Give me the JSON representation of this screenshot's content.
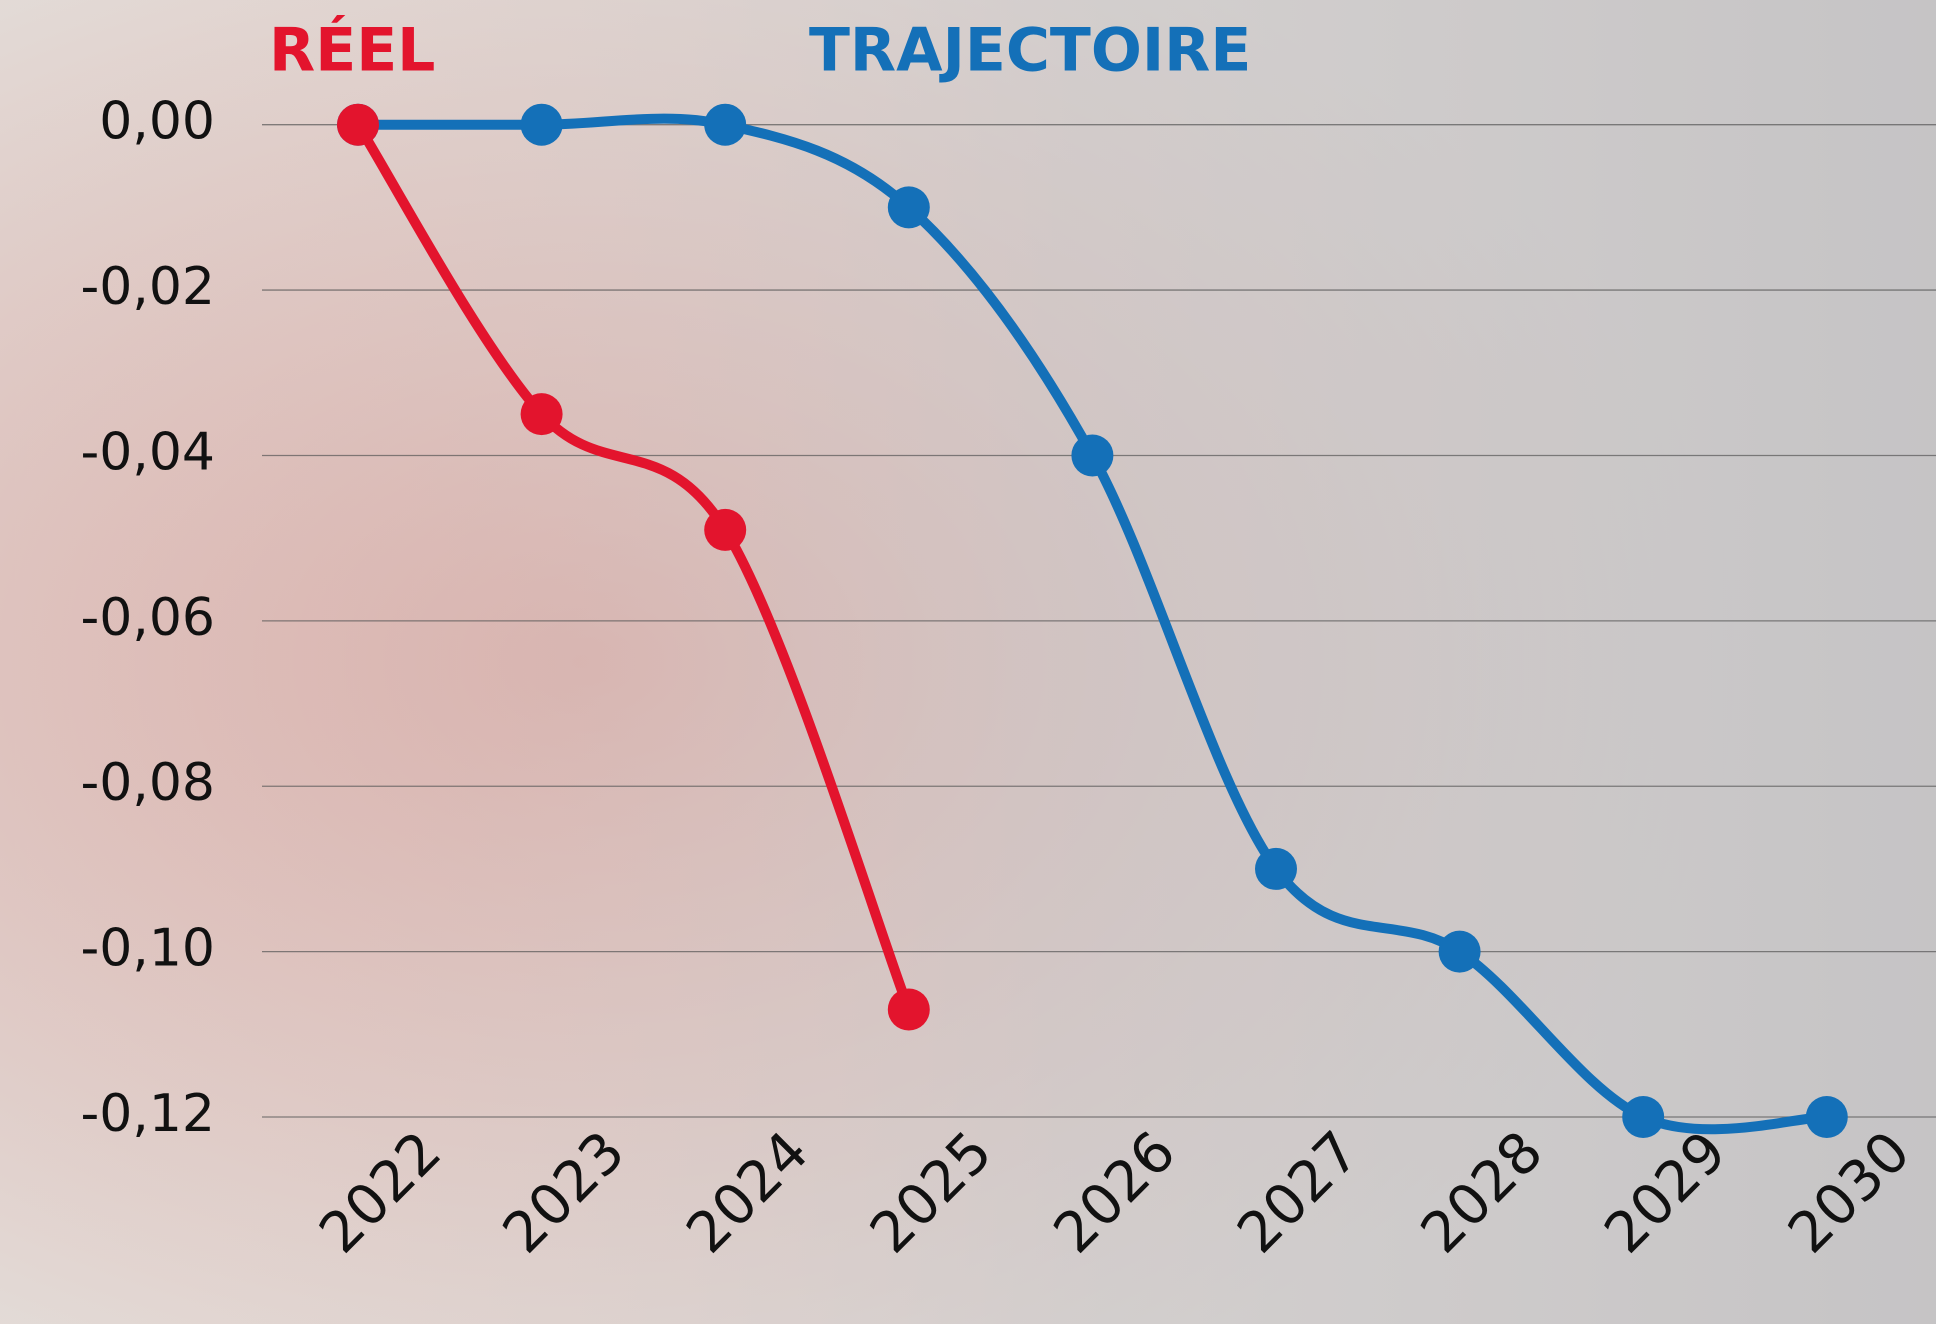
{
  "chart_data": {
    "type": "line",
    "categories": [
      "2022",
      "2023",
      "2024",
      "2025",
      "2026",
      "2027",
      "2028",
      "2029",
      "2030"
    ],
    "series": [
      {
        "name": "RÉEL",
        "color": "#e3142d",
        "values": [
          0,
          -0.035,
          -0.049,
          -0.107,
          null,
          null,
          null,
          null,
          null
        ]
      },
      {
        "name": "TRAJECTOIRE",
        "color": "#1470b8",
        "values": [
          0,
          0,
          0,
          -0.01,
          -0.04,
          -0.09,
          -0.1,
          -0.12,
          -0.12
        ]
      }
    ],
    "ylim": [
      0,
      -0.12
    ],
    "yticks": [
      {
        "value": 0,
        "label": "0,00"
      },
      {
        "value": -0.02,
        "label": "-0,02"
      },
      {
        "value": -0.04,
        "label": "-0,04"
      },
      {
        "value": -0.06,
        "label": "-0,06"
      },
      {
        "value": -0.08,
        "label": "-0,08"
      },
      {
        "value": -0.1,
        "label": "-0,10"
      },
      {
        "value": -0.12,
        "label": "-0,12"
      }
    ],
    "grid": true
  }
}
